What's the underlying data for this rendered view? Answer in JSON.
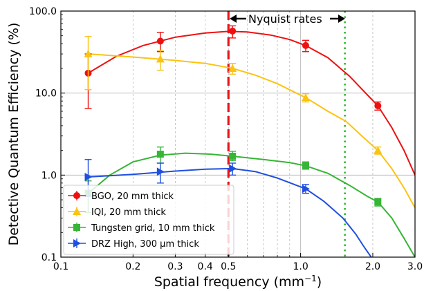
{
  "chart_data": {
    "type": "line",
    "xlabel": "Spatial frequency (mm",
    "xlabel_sup": "−1",
    "xlabel_suffix": ")",
    "ylabel": "Detective Quantum Efficiency (%)",
    "xscale": "log",
    "yscale": "log",
    "xlim": [
      0.1,
      3.0
    ],
    "ylim": [
      0.1,
      100
    ],
    "x_ticks": [
      0.1,
      0.2,
      0.3,
      0.4,
      0.5,
      1.0,
      2.0,
      3.0
    ],
    "x_tick_labels": [
      "0.1",
      "0.2",
      "0.3",
      "0.4",
      "0.5",
      "1.0",
      "2.0",
      "3.0"
    ],
    "y_ticks": [
      0.1,
      1,
      10,
      100
    ],
    "y_tick_labels": [
      "0.1",
      "1.0",
      "10.0",
      "100.0"
    ],
    "grid": true,
    "legend_position": "lower-left",
    "vlines": [
      {
        "x": 0.5,
        "color": "#e8151b",
        "style": "dashed"
      },
      {
        "x": 1.53,
        "color": "#3fbf3f",
        "style": "dotted"
      }
    ],
    "annotation": "Nyquist rates",
    "series": [
      {
        "name": "BGO, 20 mm thick",
        "marker": "circle",
        "color": "#ee1010",
        "points": [
          {
            "x": 0.13,
            "y": 17.5,
            "lo": 6.5,
            "hi": 30
          },
          {
            "x": 0.26,
            "y": 43,
            "lo": 32,
            "hi": 55
          },
          {
            "x": 0.52,
            "y": 57,
            "lo": 47,
            "hi": 66
          },
          {
            "x": 1.05,
            "y": 38,
            "lo": 32,
            "hi": 44
          },
          {
            "x": 2.1,
            "y": 7.0,
            "lo": 6.2,
            "hi": 7.8
          }
        ],
        "curve": [
          [
            0.13,
            17.5
          ],
          [
            0.17,
            28
          ],
          [
            0.22,
            38
          ],
          [
            0.3,
            48
          ],
          [
            0.4,
            54
          ],
          [
            0.5,
            56.5
          ],
          [
            0.6,
            55.5
          ],
          [
            0.75,
            51
          ],
          [
            0.9,
            45
          ],
          [
            1.05,
            38
          ],
          [
            1.3,
            27
          ],
          [
            1.6,
            16
          ],
          [
            1.9,
            9.5
          ],
          [
            2.1,
            7.0
          ],
          [
            2.4,
            3.8
          ],
          [
            2.7,
            2.0
          ],
          [
            3.0,
            1.0
          ]
        ]
      },
      {
        "name": "IQI, 20 mm thick",
        "marker": "triangle-up",
        "color": "#fbc312",
        "points": [
          {
            "x": 0.13,
            "y": 30,
            "lo": 11,
            "hi": 49
          },
          {
            "x": 0.26,
            "y": 26,
            "lo": 19,
            "hi": 33
          },
          {
            "x": 0.52,
            "y": 20,
            "lo": 17,
            "hi": 23
          },
          {
            "x": 1.05,
            "y": 8.8,
            "lo": 7.8,
            "hi": 9.8
          },
          {
            "x": 2.1,
            "y": 2.0,
            "lo": 1.8,
            "hi": 2.2
          }
        ],
        "curve": [
          [
            0.13,
            30
          ],
          [
            0.2,
            27.5
          ],
          [
            0.3,
            25
          ],
          [
            0.4,
            23
          ],
          [
            0.52,
            20
          ],
          [
            0.65,
            16.5
          ],
          [
            0.8,
            13
          ],
          [
            1.05,
            8.8
          ],
          [
            1.3,
            6.0
          ],
          [
            1.55,
            4.5
          ],
          [
            1.8,
            3.0
          ],
          [
            2.1,
            2.0
          ],
          [
            2.4,
            1.2
          ],
          [
            2.7,
            0.7
          ],
          [
            3.0,
            0.4
          ]
        ]
      },
      {
        "name": "Tungsten grid, 10 mm thick",
        "marker": "square",
        "color": "#36b536",
        "points": [
          {
            "x": 0.13,
            "y": 0.6,
            "lo": 0.35,
            "hi": 0.85
          },
          {
            "x": 0.26,
            "y": 1.8,
            "lo": 1.4,
            "hi": 2.2
          },
          {
            "x": 0.52,
            "y": 1.7,
            "lo": 1.5,
            "hi": 1.95
          },
          {
            "x": 1.05,
            "y": 1.3,
            "lo": 1.18,
            "hi": 1.45
          },
          {
            "x": 2.1,
            "y": 0.47,
            "lo": 0.42,
            "hi": 0.52
          }
        ],
        "curve": [
          [
            0.13,
            0.6
          ],
          [
            0.16,
            1.0
          ],
          [
            0.2,
            1.45
          ],
          [
            0.26,
            1.75
          ],
          [
            0.33,
            1.85
          ],
          [
            0.42,
            1.8
          ],
          [
            0.52,
            1.7
          ],
          [
            0.7,
            1.55
          ],
          [
            0.9,
            1.42
          ],
          [
            1.05,
            1.3
          ],
          [
            1.3,
            1.05
          ],
          [
            1.6,
            0.75
          ],
          [
            1.9,
            0.55
          ],
          [
            2.1,
            0.47
          ],
          [
            2.4,
            0.3
          ],
          [
            2.7,
            0.17
          ],
          [
            3.0,
            0.1
          ]
        ]
      },
      {
        "name": "DRZ High, 300 μm thick",
        "marker": "triangle-right",
        "color": "#1f4fe0",
        "points": [
          {
            "x": 0.13,
            "y": 0.95,
            "lo": 0.55,
            "hi": 1.55
          },
          {
            "x": 0.26,
            "y": 1.1,
            "lo": 0.8,
            "hi": 1.4
          },
          {
            "x": 0.52,
            "y": 1.2,
            "lo": 1.0,
            "hi": 1.4
          },
          {
            "x": 1.05,
            "y": 0.68,
            "lo": 0.6,
            "hi": 0.77
          }
        ],
        "curve": [
          [
            0.13,
            0.95
          ],
          [
            0.2,
            1.02
          ],
          [
            0.3,
            1.12
          ],
          [
            0.4,
            1.18
          ],
          [
            0.52,
            1.2
          ],
          [
            0.65,
            1.1
          ],
          [
            0.8,
            0.92
          ],
          [
            1.05,
            0.68
          ],
          [
            1.25,
            0.48
          ],
          [
            1.5,
            0.3
          ],
          [
            1.7,
            0.19
          ],
          [
            1.85,
            0.13
          ],
          [
            1.97,
            0.1
          ]
        ]
      }
    ]
  }
}
